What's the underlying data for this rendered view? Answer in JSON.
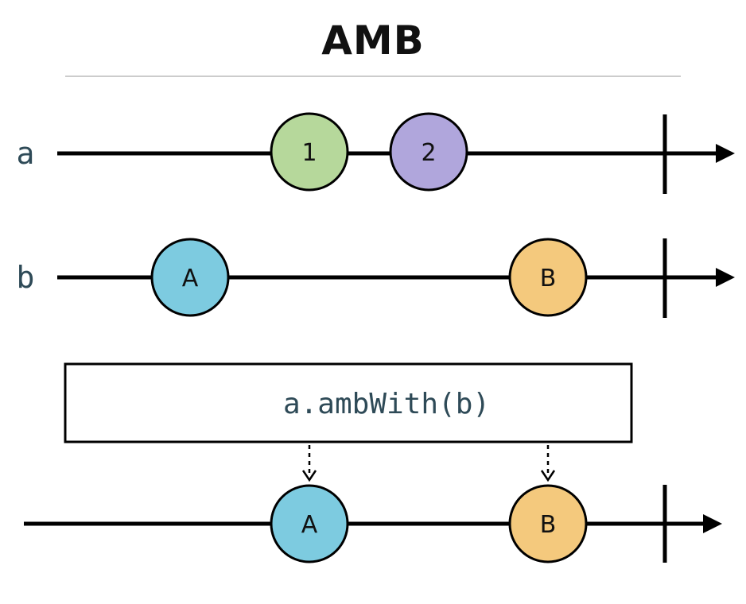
{
  "title": "AMB",
  "operator_label": "a.ambWith(b)",
  "colors": {
    "green": "#b6d89b",
    "purple": "#b0a6dc",
    "blue": "#7dcbe0",
    "orange": "#f4c97d"
  },
  "streams": [
    {
      "label": "a",
      "marbles": [
        {
          "text": "1",
          "color": "green"
        },
        {
          "text": "2",
          "color": "purple"
        }
      ]
    },
    {
      "label": "b",
      "marbles": [
        {
          "text": "A",
          "color": "blue"
        },
        {
          "text": "B",
          "color": "orange"
        }
      ]
    }
  ],
  "output": {
    "label": "",
    "marbles": [
      {
        "text": "A",
        "color": "blue"
      },
      {
        "text": "B",
        "color": "orange"
      }
    ]
  }
}
